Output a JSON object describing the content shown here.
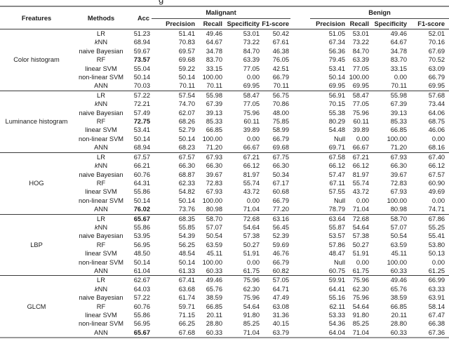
{
  "caption_fragment": "g",
  "table": {
    "header": {
      "features": "Freatures",
      "methods": "Methods",
      "acc": "Acc",
      "group_malignant": "Malignant",
      "group_benign": "Benign",
      "sub_columns": [
        "Precision",
        "Recall",
        "Specificity",
        "F1-score"
      ]
    },
    "blocks": [
      {
        "feature": "Color histogram",
        "rows": [
          {
            "method": "LR",
            "acc": "51.23",
            "acc_bold": false,
            "malignant": [
              "51.41",
              "49.46",
              "53.01",
              "50.42"
            ],
            "benign": [
              "51.05",
              "53.01",
              "49.46",
              "52.01"
            ]
          },
          {
            "method": "kNN",
            "acc": "68.94",
            "acc_bold": false,
            "malignant": [
              "70.83",
              "64.67",
              "73.22",
              "67.61"
            ],
            "benign": [
              "67.34",
              "73.22",
              "64.67",
              "70.16"
            ]
          },
          {
            "method": "naive Bayesian",
            "acc": "59.67",
            "acc_bold": false,
            "malignant": [
              "69.57",
              "34.78",
              "84.70",
              "46.38"
            ],
            "benign": [
              "56.36",
              "84.70",
              "34.78",
              "67.69"
            ]
          },
          {
            "method": "RF",
            "acc": "73.57",
            "acc_bold": true,
            "malignant": [
              "69.68",
              "83.70",
              "63.39",
              "76.05"
            ],
            "benign": [
              "79.45",
              "63.39",
              "83.70",
              "70.52"
            ]
          },
          {
            "method": "linear SVM",
            "acc": "55.04",
            "acc_bold": false,
            "malignant": [
              "59.22",
              "33.15",
              "77.05",
              "42.51"
            ],
            "benign": [
              "53.41",
              "77.05",
              "33.15",
              "63.09"
            ]
          },
          {
            "method": "non-linear SVM",
            "acc": "50.14",
            "acc_bold": false,
            "malignant": [
              "50.14",
              "100.00",
              "0.00",
              "66.79"
            ],
            "benign": [
              "50.14",
              "100.00",
              "0.00",
              "66.79"
            ]
          },
          {
            "method": "ANN",
            "acc": "70.03",
            "acc_bold": false,
            "malignant": [
              "70.11",
              "70.11",
              "69.95",
              "70.11"
            ],
            "benign": [
              "69.95",
              "69.95",
              "70.11",
              "69.95"
            ]
          }
        ]
      },
      {
        "feature": "Luminance histogram",
        "rows": [
          {
            "method": "LR",
            "acc": "57.22",
            "acc_bold": false,
            "malignant": [
              "57.54",
              "55.98",
              "58.47",
              "56.75"
            ],
            "benign": [
              "56.91",
              "58.47",
              "55.98",
              "57.68"
            ]
          },
          {
            "method": "kNN",
            "acc": "72.21",
            "acc_bold": false,
            "malignant": [
              "74.70",
              "67.39",
              "77.05",
              "70.86"
            ],
            "benign": [
              "70.15",
              "77.05",
              "67.39",
              "73.44"
            ]
          },
          {
            "method": "naive Bayesian",
            "acc": "57.49",
            "acc_bold": false,
            "malignant": [
              "62.07",
              "39.13",
              "75.96",
              "48.00"
            ],
            "benign": [
              "55.38",
              "75.96",
              "39.13",
              "64.06"
            ]
          },
          {
            "method": "RF",
            "acc": "72.75",
            "acc_bold": true,
            "malignant": [
              "68.26",
              "85.33",
              "60.11",
              "75.85"
            ],
            "benign": [
              "80.29",
              "60.11",
              "85.33",
              "68.75"
            ]
          },
          {
            "method": "linear SVM",
            "acc": "53.41",
            "acc_bold": false,
            "malignant": [
              "52.79",
              "66.85",
              "39.89",
              "58.99"
            ],
            "benign": [
              "54.48",
              "39.89",
              "66.85",
              "46.06"
            ]
          },
          {
            "method": "non-linear SVM",
            "acc": "50.14",
            "acc_bold": false,
            "malignant": [
              "50.14",
              "100.00",
              "0.00",
              "66.79"
            ],
            "benign": [
              "Null",
              "0.00",
              "100.00",
              "0.00"
            ]
          },
          {
            "method": "ANN",
            "acc": "68.94",
            "acc_bold": false,
            "malignant": [
              "68.23",
              "71.20",
              "66.67",
              "69.68"
            ],
            "benign": [
              "69.71",
              "66.67",
              "71.20",
              "68.16"
            ]
          }
        ]
      },
      {
        "feature": "HOG",
        "rows": [
          {
            "method": "LR",
            "acc": "67.57",
            "acc_bold": false,
            "malignant": [
              "67.57",
              "67.93",
              "67.21",
              "67.75"
            ],
            "benign": [
              "67.58",
              "67.21",
              "67.93",
              "67.40"
            ]
          },
          {
            "method": "kNN",
            "acc": "66.21",
            "acc_bold": false,
            "malignant": [
              "66.30",
              "66.30",
              "66.12",
              "66.30"
            ],
            "benign": [
              "66.12",
              "66.12",
              "66.30",
              "66.12"
            ]
          },
          {
            "method": "naive Bayesian",
            "acc": "60.76",
            "acc_bold": false,
            "malignant": [
              "68.87",
              "39.67",
              "81.97",
              "50.34"
            ],
            "benign": [
              "57.47",
              "81.97",
              "39.67",
              "67.57"
            ]
          },
          {
            "method": "RF",
            "acc": "64.31",
            "acc_bold": false,
            "malignant": [
              "62.33",
              "72.83",
              "55.74",
              "67.17"
            ],
            "benign": [
              "67.11",
              "55.74",
              "72.83",
              "60.90"
            ]
          },
          {
            "method": "linear SVM",
            "acc": "55.86",
            "acc_bold": false,
            "malignant": [
              "54.82",
              "67.93",
              "43.72",
              "60.68"
            ],
            "benign": [
              "57.55",
              "43.72",
              "67.93",
              "49.69"
            ]
          },
          {
            "method": "non-linear SVM",
            "acc": "50.14",
            "acc_bold": false,
            "malignant": [
              "50.14",
              "100.00",
              "0.00",
              "66.79"
            ],
            "benign": [
              "Null",
              "0.00",
              "100.00",
              "0.00"
            ]
          },
          {
            "method": "ANN",
            "acc": "76.02",
            "acc_bold": true,
            "malignant": [
              "73.76",
              "80.98",
              "71.04",
              "77.20"
            ],
            "benign": [
              "78.79",
              "71.04",
              "80.98",
              "74.71"
            ]
          }
        ]
      },
      {
        "feature": "LBP",
        "rows": [
          {
            "method": "LR",
            "acc": "65.67",
            "acc_bold": true,
            "malignant": [
              "68.35",
              "58.70",
              "72.68",
              "63.16"
            ],
            "benign": [
              "63.64",
              "72.68",
              "58.70",
              "67.86"
            ]
          },
          {
            "method": "kNN",
            "acc": "55.86",
            "acc_bold": false,
            "malignant": [
              "55.85",
              "57.07",
              "54.64",
              "56.45"
            ],
            "benign": [
              "55.87",
              "54.64",
              "57.07",
              "55.25"
            ]
          },
          {
            "method": "naive Bayesian",
            "acc": "53.95",
            "acc_bold": false,
            "malignant": [
              "54.39",
              "50.54",
              "57.38",
              "52.39"
            ],
            "benign": [
              "53.57",
              "57.38",
              "50.54",
              "55.41"
            ]
          },
          {
            "method": "RF",
            "acc": "56.95",
            "acc_bold": false,
            "malignant": [
              "56.25",
              "63.59",
              "50.27",
              "59.69"
            ],
            "benign": [
              "57.86",
              "50.27",
              "63.59",
              "53.80"
            ]
          },
          {
            "method": "linear SVM",
            "acc": "48.50",
            "acc_bold": false,
            "malignant": [
              "48.54",
              "45.11",
              "51.91",
              "46.76"
            ],
            "benign": [
              "48.47",
              "51.91",
              "45.11",
              "50.13"
            ]
          },
          {
            "method": "non-linear SVM",
            "acc": "50.14",
            "acc_bold": false,
            "malignant": [
              "50.14",
              "100.00",
              "0.00",
              "66.79"
            ],
            "benign": [
              "Null",
              "0.00",
              "100.00",
              "0.00"
            ]
          },
          {
            "method": "ANN",
            "acc": "61.04",
            "acc_bold": false,
            "malignant": [
              "61.33",
              "60.33",
              "61.75",
              "60.82"
            ],
            "benign": [
              "60.75",
              "61.75",
              "60.33",
              "61.25"
            ]
          }
        ]
      },
      {
        "feature": "GLCM",
        "rows": [
          {
            "method": "LR",
            "acc": "62.67",
            "acc_bold": false,
            "malignant": [
              "67.41",
              "49.46",
              "75.96",
              "57.05"
            ],
            "benign": [
              "59.91",
              "75.96",
              "49.46",
              "66.99"
            ]
          },
          {
            "method": "kNN",
            "acc": "64.03",
            "acc_bold": false,
            "malignant": [
              "63.68",
              "65.76",
              "62.30",
              "64.71"
            ],
            "benign": [
              "64.41",
              "62.30",
              "65.76",
              "63.33"
            ]
          },
          {
            "method": "naive Bayesian",
            "acc": "57.22",
            "acc_bold": false,
            "malignant": [
              "61.74",
              "38.59",
              "75.96",
              "47.49"
            ],
            "benign": [
              "55.16",
              "75.96",
              "38.59",
              "63.91"
            ]
          },
          {
            "method": "RF",
            "acc": "60.76",
            "acc_bold": false,
            "malignant": [
              "59.71",
              "66.85",
              "54.64",
              "63.08"
            ],
            "benign": [
              "62.11",
              "54.64",
              "66.85",
              "58.14"
            ]
          },
          {
            "method": "linear SVM",
            "acc": "55.86",
            "acc_bold": false,
            "malignant": [
              "71.15",
              "20.11",
              "91.80",
              "31.36"
            ],
            "benign": [
              "53.33",
              "91.80",
              "20.11",
              "67.47"
            ]
          },
          {
            "method": "non-linear SVM",
            "acc": "56.95",
            "acc_bold": false,
            "malignant": [
              "66.25",
              "28.80",
              "85.25",
              "40.15"
            ],
            "benign": [
              "54.36",
              "85.25",
              "28.80",
              "66.38"
            ]
          },
          {
            "method": "ANN",
            "acc": "65.67",
            "acc_bold": true,
            "malignant": [
              "67.68",
              "60.33",
              "71.04",
              "63.79"
            ],
            "benign": [
              "64.04",
              "71.04",
              "60.33",
              "67.36"
            ]
          }
        ]
      }
    ]
  }
}
